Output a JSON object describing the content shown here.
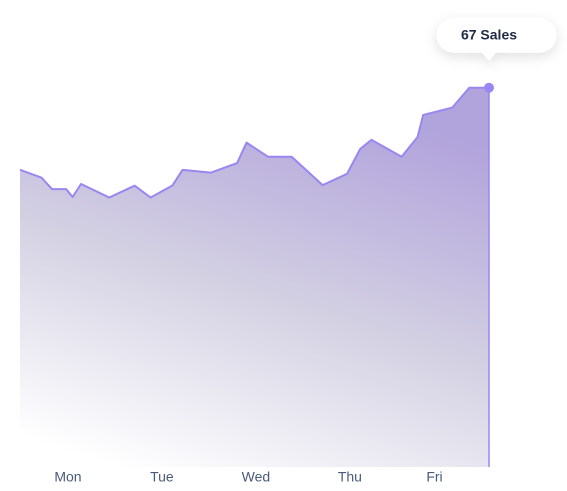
{
  "chart_data": {
    "type": "area",
    "x": [
      -0.51,
      -0.28,
      -0.17,
      -0.02,
      0.05,
      0.14,
      0.44,
      0.71,
      0.88,
      1.11,
      1.22,
      1.52,
      1.8,
      1.9,
      2.13,
      2.38,
      2.71,
      2.97,
      3.11,
      3.23,
      3.55,
      3.72,
      3.78,
      4.09,
      4.27,
      4.38,
      4.48
    ],
    "series": [
      {
        "name": "Sales",
        "color": "#9a86f0",
        "values": [
          52.5,
          51.1,
          49.1,
          49.1,
          47.7,
          50.0,
          47.6,
          49.7,
          47.6,
          49.7,
          52.5,
          52.0,
          53.7,
          57.3,
          54.8,
          54.8,
          49.8,
          51.8,
          56.2,
          57.8,
          54.8,
          58.3,
          62.2,
          63.5,
          67,
          67,
          67
        ]
      }
    ],
    "xlim": [
      -0.51,
      4.48
    ],
    "ylim": [
      0,
      82.5
    ],
    "xticks": [
      {
        "value": 0,
        "label": "Mon"
      },
      {
        "value": 1,
        "label": "Tue"
      },
      {
        "value": 2,
        "label": "Wed"
      },
      {
        "value": 3,
        "label": "Thu"
      },
      {
        "value": 3.9,
        "label": "Fri"
      }
    ],
    "annotation": "67 Sales"
  }
}
